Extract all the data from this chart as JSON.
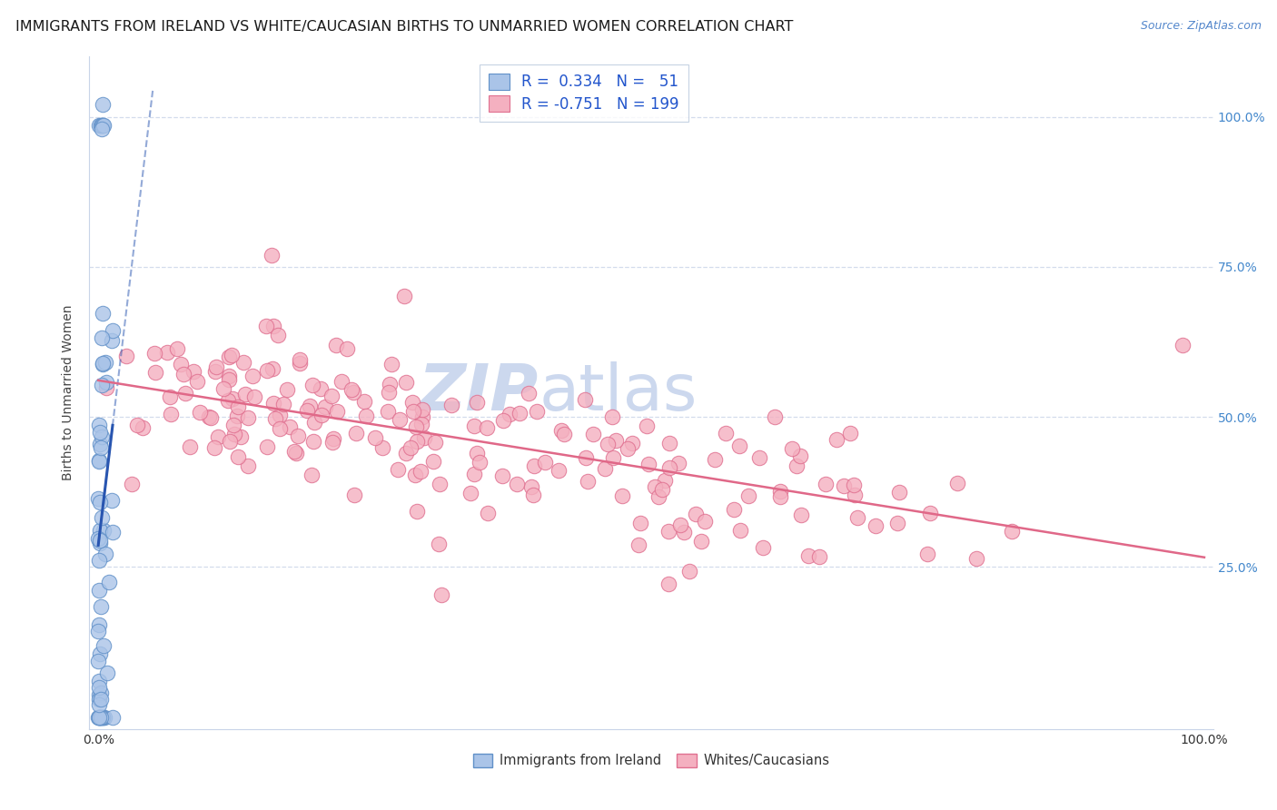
{
  "title": "IMMIGRANTS FROM IRELAND VS WHITE/CAUCASIAN BIRTHS TO UNMARRIED WOMEN CORRELATION CHART",
  "source": "Source: ZipAtlas.com",
  "ylabel": "Births to Unmarried Women",
  "watermark_zip": "ZIP",
  "watermark_atlas": "atlas",
  "legend_line1": "R =  0.334   N =   51",
  "legend_line2": "R = -0.751   N = 199",
  "blue_fill": "#aac4e8",
  "blue_edge": "#6090c8",
  "pink_fill": "#f4b0c0",
  "pink_edge": "#e07090",
  "blue_trend_color": "#2855b0",
  "pink_trend_color": "#e06888",
  "grid_color": "#c8d4e8",
  "bg_color": "#ffffff",
  "watermark_color": "#ccd8ee",
  "title_color": "#1a1a1a",
  "source_color": "#5588cc",
  "axis_color": "#888888",
  "right_tick_color": "#4488cc",
  "legend_text_color": "#2255cc",
  "bottom_legend_color": "#333333",
  "xlim_min": 0.0,
  "xlim_max": 1.0,
  "ylim_min": 0.0,
  "ylim_max": 1.05,
  "blue_seed": 42,
  "pink_seed": 99
}
